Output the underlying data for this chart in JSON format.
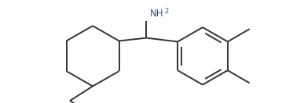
{
  "bg_color": "#ffffff",
  "bond_color": "#333333",
  "nh2_color": "#2F4F8F",
  "bond_lw": 1.4,
  "figsize": [
    3.87,
    1.32
  ],
  "dpi": 100,
  "xlim": [
    0,
    10
  ],
  "ylim": [
    0,
    3.4
  ]
}
